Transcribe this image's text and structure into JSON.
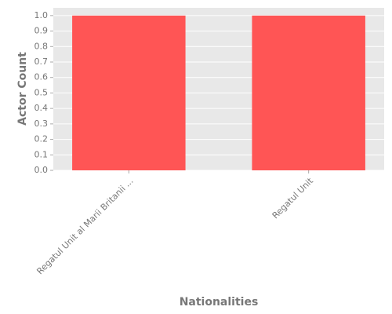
{
  "chart_data": {
    "type": "bar",
    "x_label": "Nationalities",
    "y_label": "Actor Count",
    "categories": [
      "Regatul Unit al Marii Britanii ...",
      "Regatul Unit"
    ],
    "values": [
      1,
      1
    ],
    "color": "#ff5555",
    "ylim": [
      0,
      1.05
    ],
    "yticks": [
      {
        "value": 0,
        "label": "0.0"
      },
      0.1,
      0.2,
      0.3,
      0.4,
      0.5,
      0.6,
      0.7,
      0.8,
      0.9,
      {
        "value": 1,
        "label": "1.0"
      }
    ],
    "grid": true
  }
}
